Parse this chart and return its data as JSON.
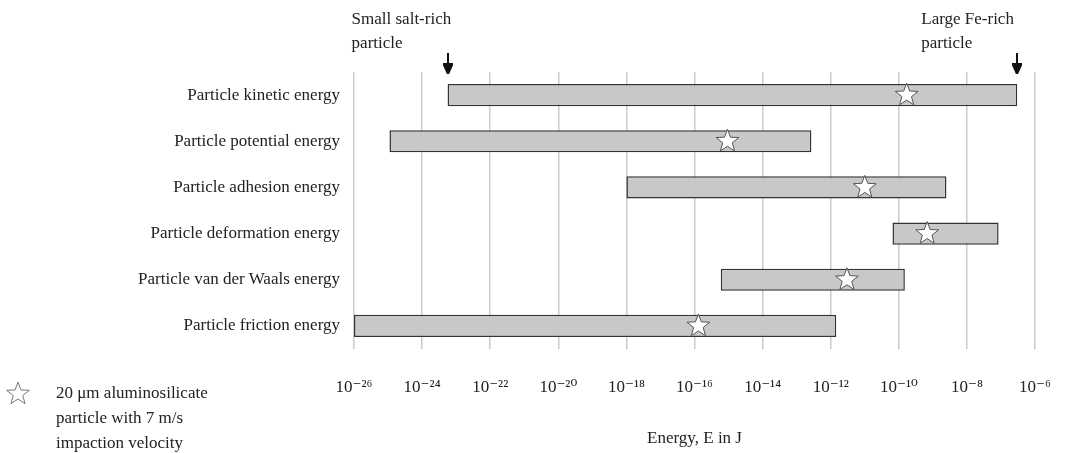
{
  "chart_data": {
    "type": "bar",
    "orientation": "horizontal",
    "log": "x",
    "xlabel": "Energy, E in J",
    "categories": [
      "Particle kinetic energy",
      "Particle potential energy",
      "Particle adhesion energy",
      "Particle deformation energy",
      "Particle van der Waals energy",
      "Particle friction energy"
    ],
    "series": [
      {
        "color": "#c8c8c8",
        "base": [
          5.6e-24,
          1.1e-25,
          1e-18,
          6.5e-11,
          5.9e-16,
          1e-26
        ],
        "values": [
          3e-07,
          2.7e-13,
          2.5e-09,
          8.5e-08,
          1.5e-10,
          1.45e-12
        ]
      },
      {
        "type": "scatter",
        "name": "20 μm aluminosilicate particle with 7 m/s impaction velocity",
        "color": "#ffffff",
        "marker": "star",
        "x": [
          "Particle kinetic energy",
          "Particle potential energy",
          "Particle adhesion energy",
          "Particle deformation energy",
          "Particle van der Waals energy",
          "Particle friction energy"
        ],
        "values": [
          1.7e-10,
          9.3e-16,
          1e-11,
          6.8e-10,
          3e-12,
          1.3e-16
        ]
      }
    ],
    "xlim": [
      1e-26,
      1e-06
    ],
    "xticks": [
      {
        "value": 1e-26,
        "label": "10⁻²⁶"
      },
      {
        "value": 1e-24,
        "label": "10⁻²⁴"
      },
      {
        "value": 1e-22,
        "label": "10⁻²²"
      },
      {
        "value": 1e-20,
        "label": "10⁻²⁰"
      },
      {
        "value": 1e-18,
        "label": "10⁻¹⁸"
      },
      {
        "value": 1e-16,
        "label": "10⁻¹⁶"
      },
      {
        "value": 1e-14,
        "label": "10⁻¹⁴"
      },
      {
        "value": 1e-12,
        "label": "10⁻¹²"
      },
      {
        "value": 1e-10,
        "label": "10⁻¹⁰"
      },
      {
        "value": 1e-08,
        "label": "10⁻⁸"
      },
      {
        "value": 1e-06,
        "label": "10⁻⁶"
      }
    ],
    "grid": "x",
    "legend": "bottom left",
    "annotations": [
      "Small salt-rich particle",
      "Large Fe-rich particle"
    ]
  }
}
